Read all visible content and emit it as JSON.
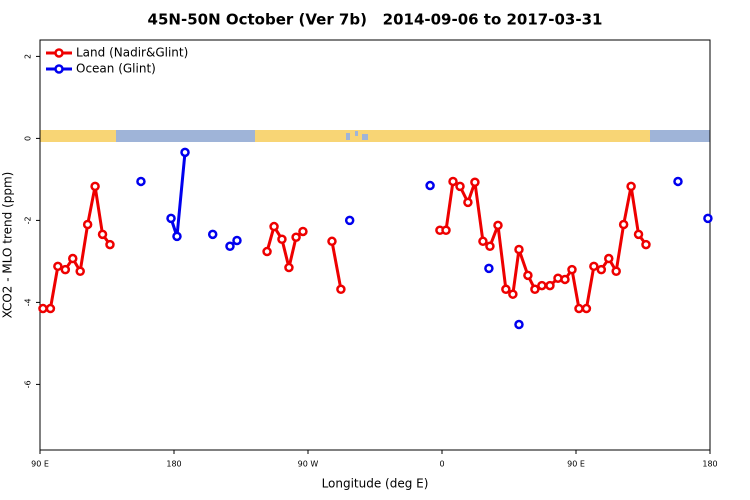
{
  "chart_data": {
    "type": "line",
    "title": "45N-50N October (Ver 7b)   2014-09-06 to 2017-03-31",
    "x_label": "Longitude (deg E)",
    "y_label": "XCO2 - MLO trend (ppm)",
    "xlim": [
      90,
      540
    ],
    "xticks": [
      {
        "value": 90,
        "label": "90 E"
      },
      {
        "value": 180,
        "label": "180"
      },
      {
        "value": 270,
        "label": "90 W"
      },
      {
        "value": 360,
        "label": "0"
      },
      {
        "value": 450,
        "label": "90 E"
      },
      {
        "value": 540,
        "label": "180"
      }
    ],
    "ylim": [
      -7.6,
      2.4
    ],
    "yticks": [
      -6,
      -4,
      -2,
      0,
      2
    ],
    "legend": "top-left",
    "series": [
      {
        "name": "Land (Nadir&Glint)",
        "color": "#ee0000",
        "x": [
          92,
          97,
          102,
          107,
          112,
          117,
          122,
          127,
          132,
          137,
          null,
          242.5,
          247.2,
          252.5,
          257.2,
          262,
          266.6,
          null,
          286.1,
          292.1,
          null,
          358.6,
          362.7,
          367.4,
          372.1,
          377.4,
          382.1,
          387.5,
          392.2,
          397.6,
          402.9,
          407.6,
          411.7,
          417.7,
          422.4,
          427.1,
          432.5,
          437.9,
          442.6,
          447.3,
          452,
          457,
          462,
          467,
          472,
          477,
          482,
          487,
          492,
          497
        ],
        "values": [
          -4.15,
          -4.15,
          -3.12,
          -3.2,
          -2.93,
          -3.24,
          -2.1,
          -1.17,
          -2.34,
          -2.59,
          null,
          -2.76,
          -2.15,
          -2.46,
          -3.15,
          -2.41,
          -2.27,
          null,
          -2.51,
          -3.68,
          null,
          -2.24,
          -2.24,
          -1.05,
          -1.17,
          -1.56,
          -1.07,
          -2.51,
          -2.63,
          -2.12,
          -3.68,
          -3.8,
          -2.71,
          -3.34,
          -3.68,
          -3.59,
          -3.59,
          -3.41,
          -3.44,
          -3.2,
          -4.15,
          -4.15,
          -3.12,
          -3.2,
          -2.93,
          -3.24,
          -2.1,
          -1.17,
          -2.34,
          -2.59
        ]
      },
      {
        "name": "Ocean (Glint)",
        "color": "#0000ee",
        "x": [
          157.8,
          null,
          178,
          182,
          187.4,
          null,
          206,
          null,
          217.6,
          222.3,
          null,
          298,
          null,
          352,
          null,
          391.5,
          null,
          411.7,
          null,
          518.5,
          null,
          538.6
        ],
        "values": [
          -1.05,
          null,
          -1.95,
          -2.39,
          -0.34,
          null,
          -2.34,
          null,
          -2.63,
          -2.49,
          null,
          -2.0,
          null,
          -1.15,
          null,
          -3.17,
          null,
          -4.54,
          null,
          -1.05,
          null,
          -1.95
        ]
      }
    ]
  }
}
